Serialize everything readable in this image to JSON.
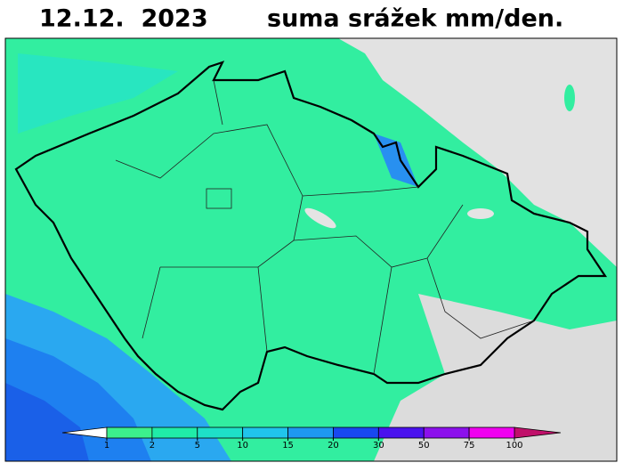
{
  "header": {
    "date": "12.12.  2023",
    "title": "suma srážek mm/den."
  },
  "colorbar": {
    "ticks": [
      1,
      2,
      5,
      10,
      15,
      20,
      30,
      50,
      75,
      100
    ],
    "under_color": "#ffffff",
    "over_color": "#c0106a",
    "colors": [
      "#3cf08c",
      "#20eca8",
      "#1ee0c8",
      "#20c4ec",
      "#1e98f0",
      "#1848f0",
      "#4a12ee",
      "#8c10ec",
      "#f000f0"
    ]
  }
}
